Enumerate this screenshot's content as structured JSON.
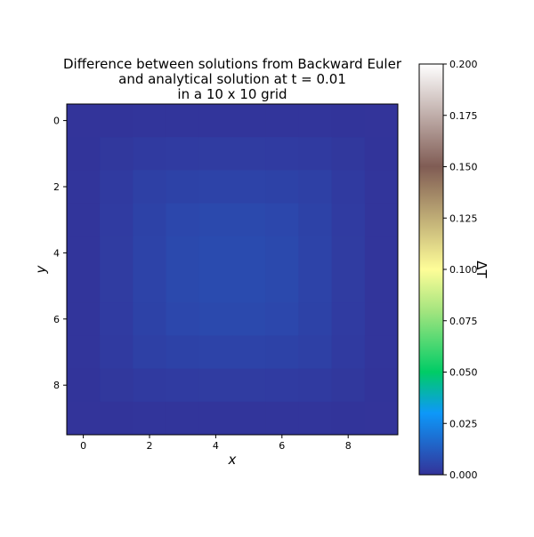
{
  "chart_data": {
    "type": "heatmap",
    "title_lines": [
      "Difference between solutions from Backward Euler",
      "and analytical solution at t = 0.01",
      "in a 10 x 10 grid"
    ],
    "xlabel": "x",
    "ylabel": "y",
    "colorbar_label": "ΔT",
    "x_ticks": [
      "0",
      "2",
      "4",
      "6",
      "8"
    ],
    "y_ticks": [
      "0",
      "2",
      "4",
      "6",
      "8"
    ],
    "colorbar_ticks": [
      "0.000",
      "0.025",
      "0.050",
      "0.075",
      "0.100",
      "0.125",
      "0.150",
      "0.175",
      "0.200"
    ],
    "vmin": 0.0,
    "vmax": 0.2,
    "colormap": "terrain-like",
    "colormap_stops": [
      {
        "v": 0.0,
        "color": "#333399"
      },
      {
        "v": 0.03,
        "color": "#0d98f9"
      },
      {
        "v": 0.05,
        "color": "#00cc66"
      },
      {
        "v": 0.08,
        "color": "#a5e57f"
      },
      {
        "v": 0.1,
        "color": "#fefd98"
      },
      {
        "v": 0.15,
        "color": "#805c54"
      },
      {
        "v": 0.2,
        "color": "#ffffff"
      }
    ],
    "grid_size": [
      10,
      10
    ],
    "values": [
      [
        0.0002,
        0.0004,
        0.0005,
        0.0006,
        0.0006,
        0.0006,
        0.0006,
        0.0005,
        0.0004,
        0.0002
      ],
      [
        0.0004,
        0.0014,
        0.0022,
        0.0025,
        0.0026,
        0.0026,
        0.0025,
        0.0022,
        0.0014,
        0.0004
      ],
      [
        0.0005,
        0.0022,
        0.0038,
        0.0045,
        0.0048,
        0.0048,
        0.0045,
        0.0038,
        0.0022,
        0.0005
      ],
      [
        0.0006,
        0.0025,
        0.0045,
        0.0058,
        0.0064,
        0.0064,
        0.0058,
        0.0045,
        0.0025,
        0.0006
      ],
      [
        0.0006,
        0.0026,
        0.0048,
        0.0064,
        0.007,
        0.007,
        0.0064,
        0.0048,
        0.0026,
        0.0006
      ],
      [
        0.0006,
        0.0026,
        0.0048,
        0.0064,
        0.007,
        0.007,
        0.0064,
        0.0048,
        0.0026,
        0.0006
      ],
      [
        0.0006,
        0.0025,
        0.0045,
        0.0058,
        0.0064,
        0.0064,
        0.0058,
        0.0045,
        0.0025,
        0.0006
      ],
      [
        0.0005,
        0.0022,
        0.0038,
        0.0045,
        0.0048,
        0.0048,
        0.0045,
        0.0038,
        0.0022,
        0.0005
      ],
      [
        0.0004,
        0.0014,
        0.0022,
        0.0025,
        0.0026,
        0.0026,
        0.0025,
        0.0022,
        0.0014,
        0.0004
      ],
      [
        0.0002,
        0.0004,
        0.0005,
        0.0006,
        0.0006,
        0.0006,
        0.0006,
        0.0005,
        0.0004,
        0.0002
      ]
    ]
  }
}
